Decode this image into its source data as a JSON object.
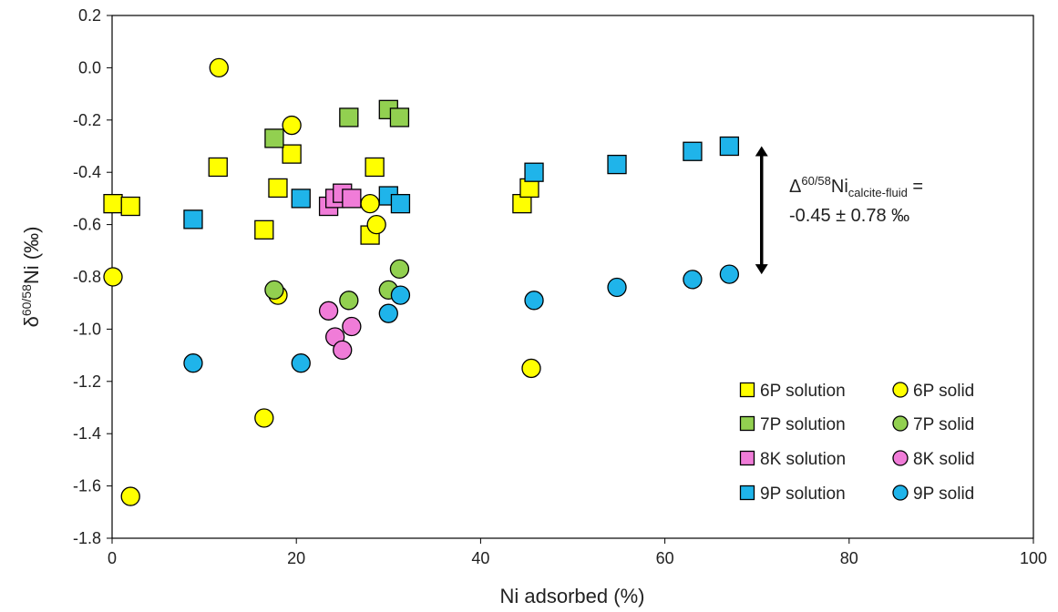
{
  "chart_data": {
    "type": "scatter",
    "xlabel": "Ni adsorbed (%)",
    "ylabel": {
      "main": "δ",
      "sup": "60/58",
      "rest": "Ni (‰)"
    },
    "xlim": [
      0,
      100
    ],
    "ylim": [
      -1.8,
      0.2
    ],
    "x_ticks": [
      0,
      20,
      40,
      60,
      80,
      100
    ],
    "y_ticks": [
      0.2,
      0.0,
      -0.2,
      -0.4,
      -0.6,
      -0.8,
      -1.0,
      -1.2,
      -1.4,
      -1.6,
      -1.8
    ],
    "x_tick_labels": [
      "0",
      "20",
      "40",
      "60",
      "80",
      "100"
    ],
    "y_tick_labels": [
      "0.2",
      "0.0",
      "-0.2",
      "-0.4",
      "-0.6",
      "-0.8",
      "-1.0",
      "-1.2",
      "-1.4",
      "-1.6",
      "-1.8"
    ],
    "grid": false,
    "legend_position": "bottom-right",
    "series": [
      {
        "name": "6P solution",
        "marker": "square",
        "color": "#ffff00",
        "points": [
          [
            0.1,
            -0.52
          ],
          [
            2.0,
            -0.53
          ],
          [
            11.5,
            -0.38
          ],
          [
            16.5,
            -0.62
          ],
          [
            18.0,
            -0.46
          ],
          [
            19.5,
            -0.33
          ],
          [
            28.0,
            -0.64
          ],
          [
            28.5,
            -0.38
          ],
          [
            44.5,
            -0.52
          ],
          [
            45.3,
            -0.46
          ]
        ]
      },
      {
        "name": "6P solid",
        "marker": "circle",
        "color": "#ffff00",
        "points": [
          [
            0.1,
            -0.8
          ],
          [
            11.6,
            0.0
          ],
          [
            2.0,
            -1.64
          ],
          [
            16.5,
            -1.34
          ],
          [
            18.0,
            -0.87
          ],
          [
            19.5,
            -0.22
          ],
          [
            28.0,
            -0.52
          ],
          [
            28.7,
            -0.6
          ],
          [
            45.5,
            -1.15
          ]
        ]
      },
      {
        "name": "7P solution",
        "marker": "square",
        "color": "#92d050",
        "points": [
          [
            17.6,
            -0.27
          ],
          [
            25.7,
            -0.19
          ],
          [
            30.0,
            -0.16
          ],
          [
            31.2,
            -0.19
          ]
        ]
      },
      {
        "name": "7P solid",
        "marker": "circle",
        "color": "#92d050",
        "points": [
          [
            17.6,
            -0.85
          ],
          [
            25.7,
            -0.89
          ],
          [
            30.0,
            -0.85
          ],
          [
            31.2,
            -0.77
          ]
        ]
      },
      {
        "name": "8K solution",
        "marker": "square",
        "color": "#f07cd8",
        "points": [
          [
            23.5,
            -0.53
          ],
          [
            24.2,
            -0.5
          ],
          [
            25.0,
            -0.48
          ],
          [
            26.0,
            -0.5
          ]
        ]
      },
      {
        "name": "8K solid",
        "marker": "circle",
        "color": "#f07cd8",
        "points": [
          [
            23.5,
            -0.93
          ],
          [
            24.2,
            -1.03
          ],
          [
            25.0,
            -1.08
          ],
          [
            26.0,
            -0.99
          ]
        ]
      },
      {
        "name": "9P solution",
        "marker": "square",
        "color": "#1fb4ea",
        "points": [
          [
            8.8,
            -0.58
          ],
          [
            20.5,
            -0.5
          ],
          [
            30.0,
            -0.49
          ],
          [
            31.3,
            -0.52
          ],
          [
            45.8,
            -0.4
          ],
          [
            54.8,
            -0.37
          ],
          [
            63.0,
            -0.32
          ],
          [
            67.0,
            -0.3
          ]
        ]
      },
      {
        "name": "9P solid",
        "marker": "circle",
        "color": "#1fb4ea",
        "points": [
          [
            8.8,
            -1.13
          ],
          [
            20.5,
            -1.13
          ],
          [
            30.0,
            -0.94
          ],
          [
            31.3,
            -0.87
          ],
          [
            45.8,
            -0.89
          ],
          [
            54.8,
            -0.84
          ],
          [
            63.0,
            -0.81
          ],
          [
            67.0,
            -0.79
          ]
        ]
      }
    ],
    "annotation": {
      "arrow": {
        "x": 70.5,
        "y_top": -0.3,
        "y_bottom": -0.79
      },
      "line1_prefix": "Δ",
      "line1_sup": "60/58",
      "line1_main": "Ni",
      "line1_sub": "calcite-fluid",
      "line1_suffix": " =",
      "line2": "-0.45 ± 0.78 ‰"
    }
  }
}
